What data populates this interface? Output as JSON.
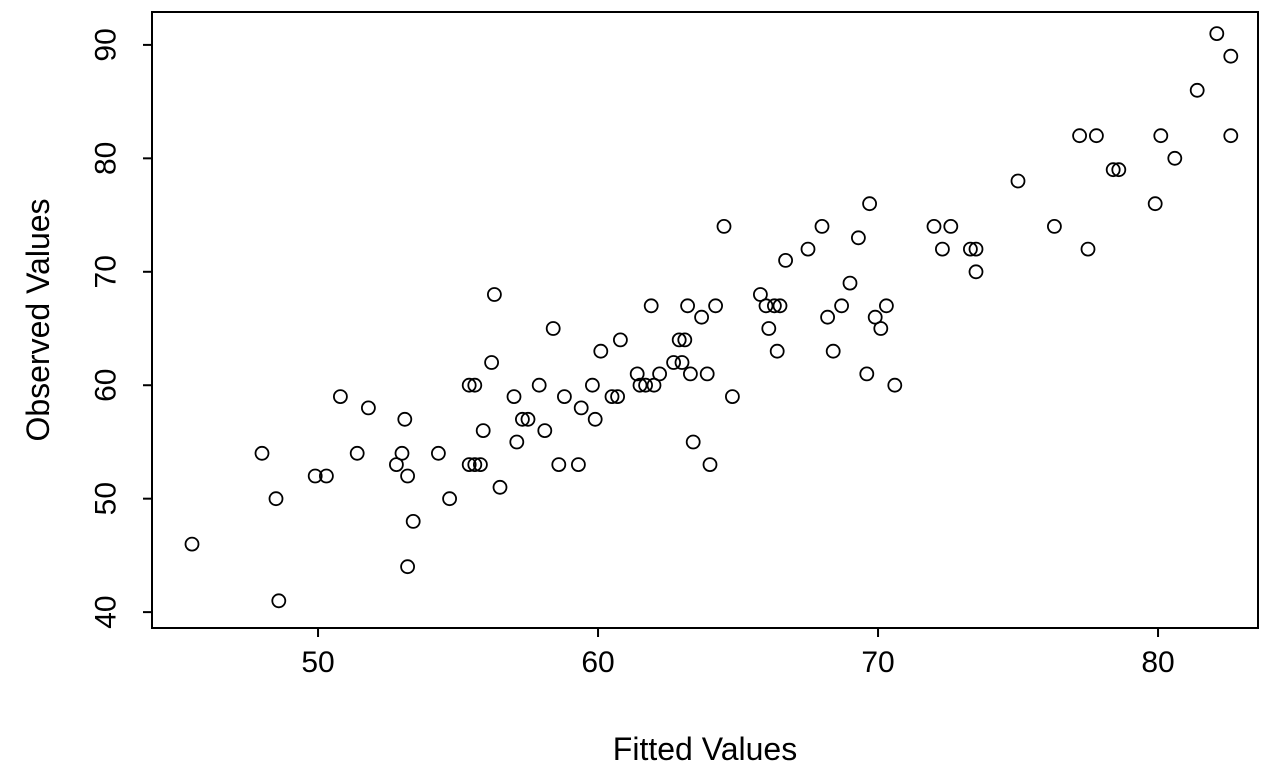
{
  "chart_data": {
    "type": "scatter",
    "title": "",
    "xlabel": "Fitted Values",
    "ylabel": "Observed Values",
    "xticks": [
      50,
      60,
      70,
      80
    ],
    "yticks": [
      40,
      50,
      60,
      70,
      80,
      90
    ],
    "xlim": [
      44.07,
      83.57
    ],
    "ylim": [
      38.6,
      92.9
    ],
    "grid": false,
    "legend": "none",
    "marker": "open-circle",
    "marker_color": "#000000",
    "points": [
      [
        45.5,
        46
      ],
      [
        48.0,
        54
      ],
      [
        48.5,
        50
      ],
      [
        48.6,
        41
      ],
      [
        49.9,
        52
      ],
      [
        50.3,
        52
      ],
      [
        50.8,
        59
      ],
      [
        51.4,
        54
      ],
      [
        51.8,
        58
      ],
      [
        52.8,
        53
      ],
      [
        53.0,
        54
      ],
      [
        53.1,
        57
      ],
      [
        53.2,
        52
      ],
      [
        53.2,
        44
      ],
      [
        53.4,
        48
      ],
      [
        54.3,
        54
      ],
      [
        54.7,
        50
      ],
      [
        55.4,
        60
      ],
      [
        55.6,
        60
      ],
      [
        55.4,
        53
      ],
      [
        55.6,
        53
      ],
      [
        55.8,
        53
      ],
      [
        55.9,
        56
      ],
      [
        56.2,
        62
      ],
      [
        56.3,
        68
      ],
      [
        56.5,
        51
      ],
      [
        57.0,
        59
      ],
      [
        57.1,
        55
      ],
      [
        57.3,
        57
      ],
      [
        57.5,
        57
      ],
      [
        57.9,
        60
      ],
      [
        58.1,
        56
      ],
      [
        58.4,
        65
      ],
      [
        58.6,
        53
      ],
      [
        58.8,
        59
      ],
      [
        59.3,
        53
      ],
      [
        59.4,
        58
      ],
      [
        59.8,
        60
      ],
      [
        59.9,
        57
      ],
      [
        60.1,
        63
      ],
      [
        60.5,
        59
      ],
      [
        60.7,
        59
      ],
      [
        60.8,
        64
      ],
      [
        61.4,
        61
      ],
      [
        61.5,
        60
      ],
      [
        61.7,
        60
      ],
      [
        61.9,
        67
      ],
      [
        62.0,
        60
      ],
      [
        62.2,
        61
      ],
      [
        62.7,
        62
      ],
      [
        62.9,
        64
      ],
      [
        63.1,
        64
      ],
      [
        63.0,
        62
      ],
      [
        63.2,
        67
      ],
      [
        63.3,
        61
      ],
      [
        63.4,
        55
      ],
      [
        63.7,
        66
      ],
      [
        63.9,
        61
      ],
      [
        64.0,
        53
      ],
      [
        64.2,
        67
      ],
      [
        64.5,
        74
      ],
      [
        64.8,
        59
      ],
      [
        65.8,
        68
      ],
      [
        66.0,
        67
      ],
      [
        66.1,
        65
      ],
      [
        66.3,
        67
      ],
      [
        66.5,
        67
      ],
      [
        66.4,
        63
      ],
      [
        66.7,
        71
      ],
      [
        67.5,
        72
      ],
      [
        68.0,
        74
      ],
      [
        68.2,
        66
      ],
      [
        68.4,
        63
      ],
      [
        68.7,
        67
      ],
      [
        69.0,
        69
      ],
      [
        69.3,
        73
      ],
      [
        69.7,
        76
      ],
      [
        69.6,
        61
      ],
      [
        69.9,
        66
      ],
      [
        70.1,
        65
      ],
      [
        70.3,
        67
      ],
      [
        70.6,
        60
      ],
      [
        72.0,
        74
      ],
      [
        72.3,
        72
      ],
      [
        72.6,
        74
      ],
      [
        73.3,
        72
      ],
      [
        73.5,
        72
      ],
      [
        73.5,
        70
      ],
      [
        75.0,
        78
      ],
      [
        76.3,
        74
      ],
      [
        77.2,
        82
      ],
      [
        77.5,
        72
      ],
      [
        77.8,
        82
      ],
      [
        78.4,
        79
      ],
      [
        78.6,
        79
      ],
      [
        79.9,
        76
      ],
      [
        80.1,
        82
      ],
      [
        80.6,
        80
      ],
      [
        81.4,
        86
      ],
      [
        82.1,
        91
      ],
      [
        82.6,
        89
      ],
      [
        82.6,
        82
      ]
    ]
  }
}
